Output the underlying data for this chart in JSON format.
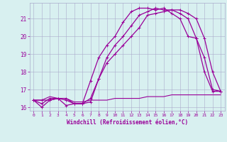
{
  "xlabel": "Windchill (Refroidissement éolien,°C)",
  "x": [
    0,
    1,
    2,
    3,
    4,
    5,
    6,
    7,
    8,
    9,
    10,
    11,
    12,
    13,
    14,
    15,
    16,
    17,
    18,
    19,
    20,
    21,
    22,
    23
  ],
  "line1": [
    16.4,
    16.4,
    16.6,
    16.5,
    16.5,
    16.3,
    16.3,
    16.4,
    16.4,
    16.4,
    16.5,
    16.5,
    16.5,
    16.5,
    16.6,
    16.6,
    16.6,
    16.7,
    16.7,
    16.7,
    16.7,
    16.7,
    16.7,
    16.7
  ],
  "line2": [
    16.4,
    16.0,
    16.4,
    16.5,
    16.1,
    16.2,
    16.2,
    17.5,
    18.8,
    19.5,
    20.0,
    20.8,
    21.4,
    21.6,
    21.6,
    21.5,
    21.6,
    21.3,
    21.0,
    20.0,
    19.9,
    18.0,
    16.9,
    16.9
  ],
  "line3": [
    16.4,
    16.2,
    16.5,
    16.5,
    16.4,
    16.2,
    16.2,
    16.3,
    17.6,
    18.8,
    19.5,
    20.0,
    20.6,
    21.2,
    21.4,
    21.6,
    21.5,
    21.5,
    21.3,
    21.0,
    19.9,
    18.8,
    17.0,
    16.9
  ],
  "line4": [
    16.4,
    16.4,
    16.4,
    16.5,
    16.5,
    16.2,
    16.2,
    16.5,
    17.6,
    18.5,
    19.0,
    19.5,
    20.0,
    20.5,
    21.2,
    21.3,
    21.4,
    21.5,
    21.5,
    21.3,
    21.0,
    19.9,
    18.0,
    16.9
  ],
  "color": "#990099",
  "bg_color": "#d8f0f0",
  "grid_color": "#aaaacc",
  "ylim": [
    15.8,
    21.9
  ],
  "xlim": [
    -0.5,
    23.5
  ]
}
